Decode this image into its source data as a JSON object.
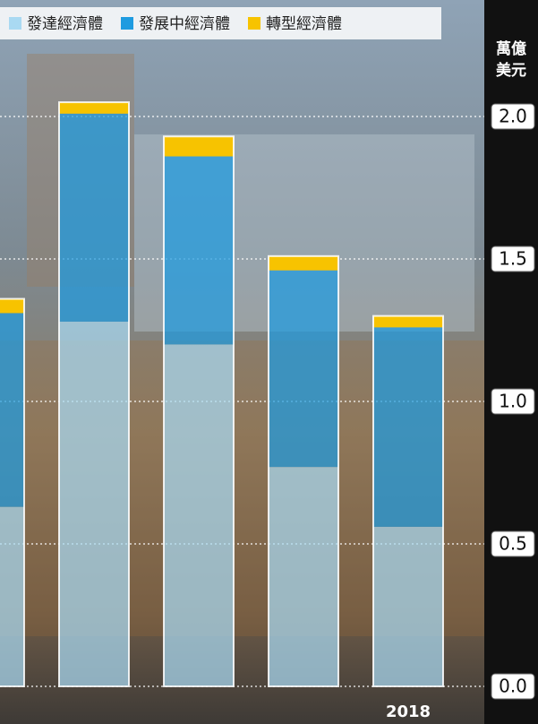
{
  "chart_data": {
    "type": "stacked_bar",
    "categories": [
      null,
      null,
      null,
      null,
      "2018"
    ],
    "series": [
      {
        "name": "發達經濟體",
        "color": "#a9d9f2",
        "values": [
          0.63,
          1.28,
          1.2,
          0.77,
          0.56
        ]
      },
      {
        "name": "發展中經濟體",
        "color": "#1e9be0",
        "values": [
          0.68,
          0.73,
          0.66,
          0.69,
          0.7
        ]
      },
      {
        "name": "轉型經濟體",
        "color": "#f7c300",
        "values": [
          0.05,
          0.04,
          0.07,
          0.05,
          0.04
        ]
      }
    ],
    "ylabel_lines": [
      "萬億",
      "美元"
    ],
    "ylim": [
      0,
      2.0
    ],
    "yticks": [
      {
        "value": 0,
        "label": "0.0"
      },
      0.5,
      {
        "value": 1,
        "label": "1.0"
      },
      1.5,
      {
        "value": 2,
        "label": "2.0"
      }
    ],
    "grid": true
  }
}
